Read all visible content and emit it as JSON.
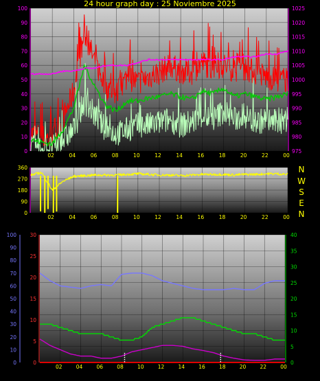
{
  "title": "24 hour graph day : 25 Noviembre 2025",
  "wind_letters": [
    "N",
    "W",
    "S",
    "E",
    "N"
  ],
  "colors": {
    "axis_left": "#ff00ff",
    "axis_right": "#ff00ff",
    "ticks_yellow": "#ffff00",
    "series_red": "#ff0000",
    "series_green": "#00cc00",
    "series_mint": "#bbffbb",
    "series_magenta": "#ff00ff",
    "series_yellow": "#ffff00",
    "series_blue": "#7777ff",
    "series_green2": "#00dd00",
    "series_magenta2": "#cc00cc",
    "series_red2": "#ff0000",
    "axis_blue": "#7777ff",
    "axis_red": "#ff3333",
    "axis_green": "#00dd00"
  },
  "chart_data": [
    {
      "type": "line",
      "x_ticks": [
        "02",
        "04",
        "06",
        "08",
        "10",
        "12",
        "14",
        "16",
        "18",
        "20",
        "22",
        "00"
      ],
      "left_axis": {
        "ticks": [
          "0",
          "10",
          "20",
          "30",
          "40",
          "50",
          "60",
          "70",
          "80",
          "90",
          "100"
        ],
        "ylim": [
          0,
          100
        ]
      },
      "right_axis": {
        "ticks": [
          "975",
          "980",
          "985",
          "990",
          "995",
          "1000",
          "1005",
          "1010",
          "1015",
          "1020",
          "1025"
        ],
        "ylim": [
          975,
          1025
        ]
      },
      "hours": [
        0,
        1,
        2,
        3,
        4,
        5,
        6,
        7,
        8,
        9,
        10,
        11,
        12,
        13,
        14,
        15,
        16,
        17,
        18,
        19,
        20,
        21,
        22,
        23,
        24
      ],
      "series": [
        {
          "values": [
            12,
            10,
            8,
            22,
            42,
            82,
            62,
            45,
            40,
            52,
            48,
            52,
            55,
            60,
            56,
            55,
            62,
            58,
            60,
            57,
            58,
            55,
            52,
            50,
            50
          ]
        },
        {
          "values": [
            8,
            6,
            5,
            15,
            30,
            60,
            45,
            32,
            28,
            35,
            35,
            37,
            38,
            40,
            38,
            36,
            42,
            40,
            44,
            38,
            40,
            38,
            36,
            38,
            40
          ]
        },
        {
          "values": [
            2,
            2,
            2,
            8,
            15,
            35,
            25,
            15,
            12,
            15,
            18,
            18,
            20,
            22,
            18,
            20,
            25,
            22,
            28,
            22,
            25,
            20,
            22,
            20,
            22
          ]
        },
        {
          "axis": "right",
          "values": [
            1002,
            1002,
            1002,
            1003,
            1003,
            1004,
            1004,
            1005,
            1005,
            1005,
            1006,
            1007,
            1007,
            1007,
            1007,
            1007,
            1007,
            1007,
            1007,
            1008,
            1008,
            1008,
            1009,
            1009,
            1010
          ]
        }
      ]
    },
    {
      "type": "line",
      "x_ticks": [
        "02",
        "04",
        "06",
        "08",
        "10",
        "12",
        "14",
        "16",
        "18",
        "20",
        "22",
        "00"
      ],
      "left_axis": {
        "ticks": [
          "0",
          "90",
          "180",
          "270",
          "360"
        ],
        "ylim": [
          0,
          360
        ]
      },
      "hours": [
        0,
        1,
        2,
        3,
        4,
        5,
        6,
        7,
        8,
        9,
        10,
        11,
        12,
        13,
        14,
        15,
        16,
        17,
        18,
        19,
        20,
        21,
        22,
        23,
        24
      ],
      "series": [
        {
          "values": [
            300,
            320,
            180,
            250,
            290,
            295,
            300,
            300,
            300,
            305,
            310,
            305,
            300,
            300,
            295,
            300,
            305,
            305,
            305,
            300,
            305,
            305,
            310,
            310,
            305
          ]
        }
      ]
    },
    {
      "type": "line",
      "x_ticks": [
        "02",
        "04",
        "06",
        "08",
        "10",
        "12",
        "14",
        "16",
        "18",
        "20",
        "22",
        "00"
      ],
      "axis_blue": {
        "ticks": [
          "0",
          "10",
          "20",
          "30",
          "40",
          "50",
          "60",
          "70",
          "80",
          "90",
          "100"
        ],
        "ylim": [
          0,
          100
        ]
      },
      "axis_red": {
        "ticks": [
          "0",
          "5",
          "10",
          "15",
          "20",
          "25",
          "30"
        ],
        "ylim": [
          0,
          30
        ]
      },
      "axis_green": {
        "ticks": [
          "0",
          "5",
          "10",
          "15",
          "20",
          "25",
          "30",
          "35",
          "40"
        ],
        "ylim": [
          0,
          40
        ]
      },
      "hours": [
        0,
        1,
        2,
        3,
        4,
        5,
        6,
        7,
        8,
        9,
        10,
        11,
        12,
        13,
        14,
        15,
        16,
        17,
        18,
        19,
        20,
        21,
        22,
        23,
        24
      ],
      "series": [
        {
          "axis": "blue",
          "values": [
            70,
            64,
            60,
            59,
            58,
            60,
            61,
            60,
            69,
            70,
            70,
            68,
            64,
            62,
            60,
            58,
            57,
            57,
            57,
            58,
            57,
            57,
            62,
            64,
            64
          ]
        },
        {
          "axis": "green",
          "values": [
            12,
            12,
            11,
            10,
            9,
            9,
            9,
            8,
            7,
            7,
            8,
            11,
            12,
            13,
            14,
            14,
            13,
            12,
            11,
            10,
            9,
            9,
            8,
            7,
            7
          ]
        },
        {
          "axis": "red",
          "values": [
            5.5,
            4,
            3,
            2,
            1.5,
            1.5,
            1,
            1,
            1.5,
            2.5,
            3,
            3.5,
            4,
            4,
            3.8,
            3.2,
            2.8,
            2.3,
            1.5,
            1,
            0.6,
            0.5,
            0.5,
            0.8,
            0.8
          ]
        },
        {
          "axis": "red",
          "values": [
            0,
            0,
            0,
            0,
            0,
            0,
            0,
            0,
            0,
            0,
            0,
            0,
            0,
            0,
            0,
            0,
            0,
            0,
            0,
            0,
            0,
            0,
            0,
            0,
            0
          ]
        }
      ]
    }
  ]
}
